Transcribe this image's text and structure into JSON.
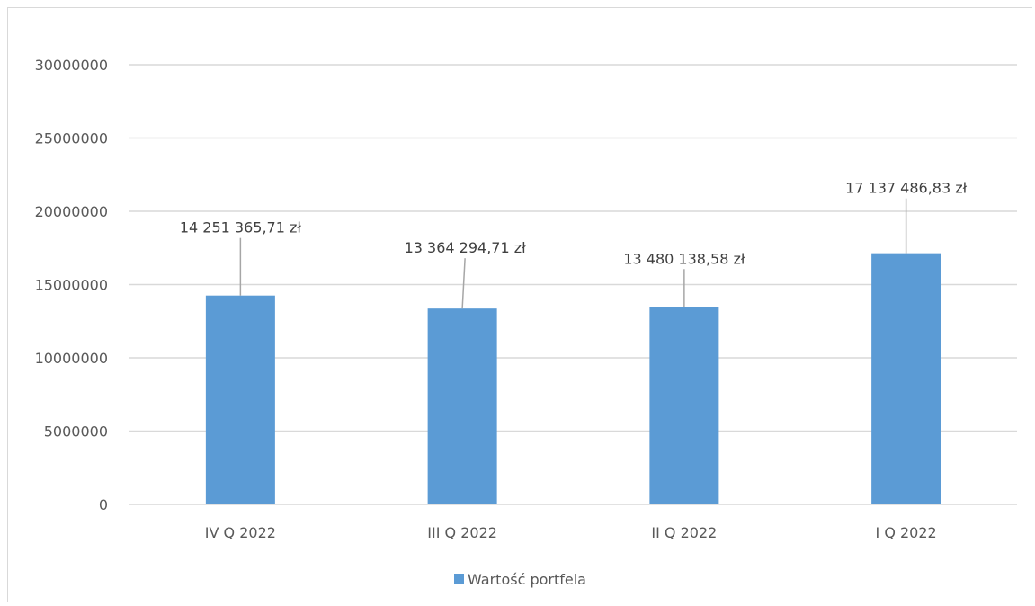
{
  "chart_data": {
    "type": "bar",
    "categories": [
      "IV Q 2022",
      "III Q 2022",
      "II Q 2022",
      "I Q 2022"
    ],
    "series": [
      {
        "name": "Wartość portfela",
        "values": [
          14251365.71,
          13364294.71,
          13480138.58,
          17137486.83
        ],
        "data_labels": [
          "14 251 365,71 zł",
          "13 364 294,71 zł",
          "13 480 138,58 zł",
          "17 137 486,83 zł"
        ]
      }
    ],
    "ylim": [
      0,
      30000000
    ],
    "y_ticks": [
      0,
      5000000,
      10000000,
      15000000,
      20000000,
      25000000,
      30000000
    ],
    "y_tick_labels": [
      "0",
      "5000000",
      "10000000",
      "15000000",
      "20000000",
      "25000000",
      "30000000"
    ],
    "grid": true,
    "legend_position": "bottom",
    "colors": {
      "bar": "#5b9bd5",
      "grid": "#d9d9d9",
      "leader": "#a6a6a6"
    }
  }
}
